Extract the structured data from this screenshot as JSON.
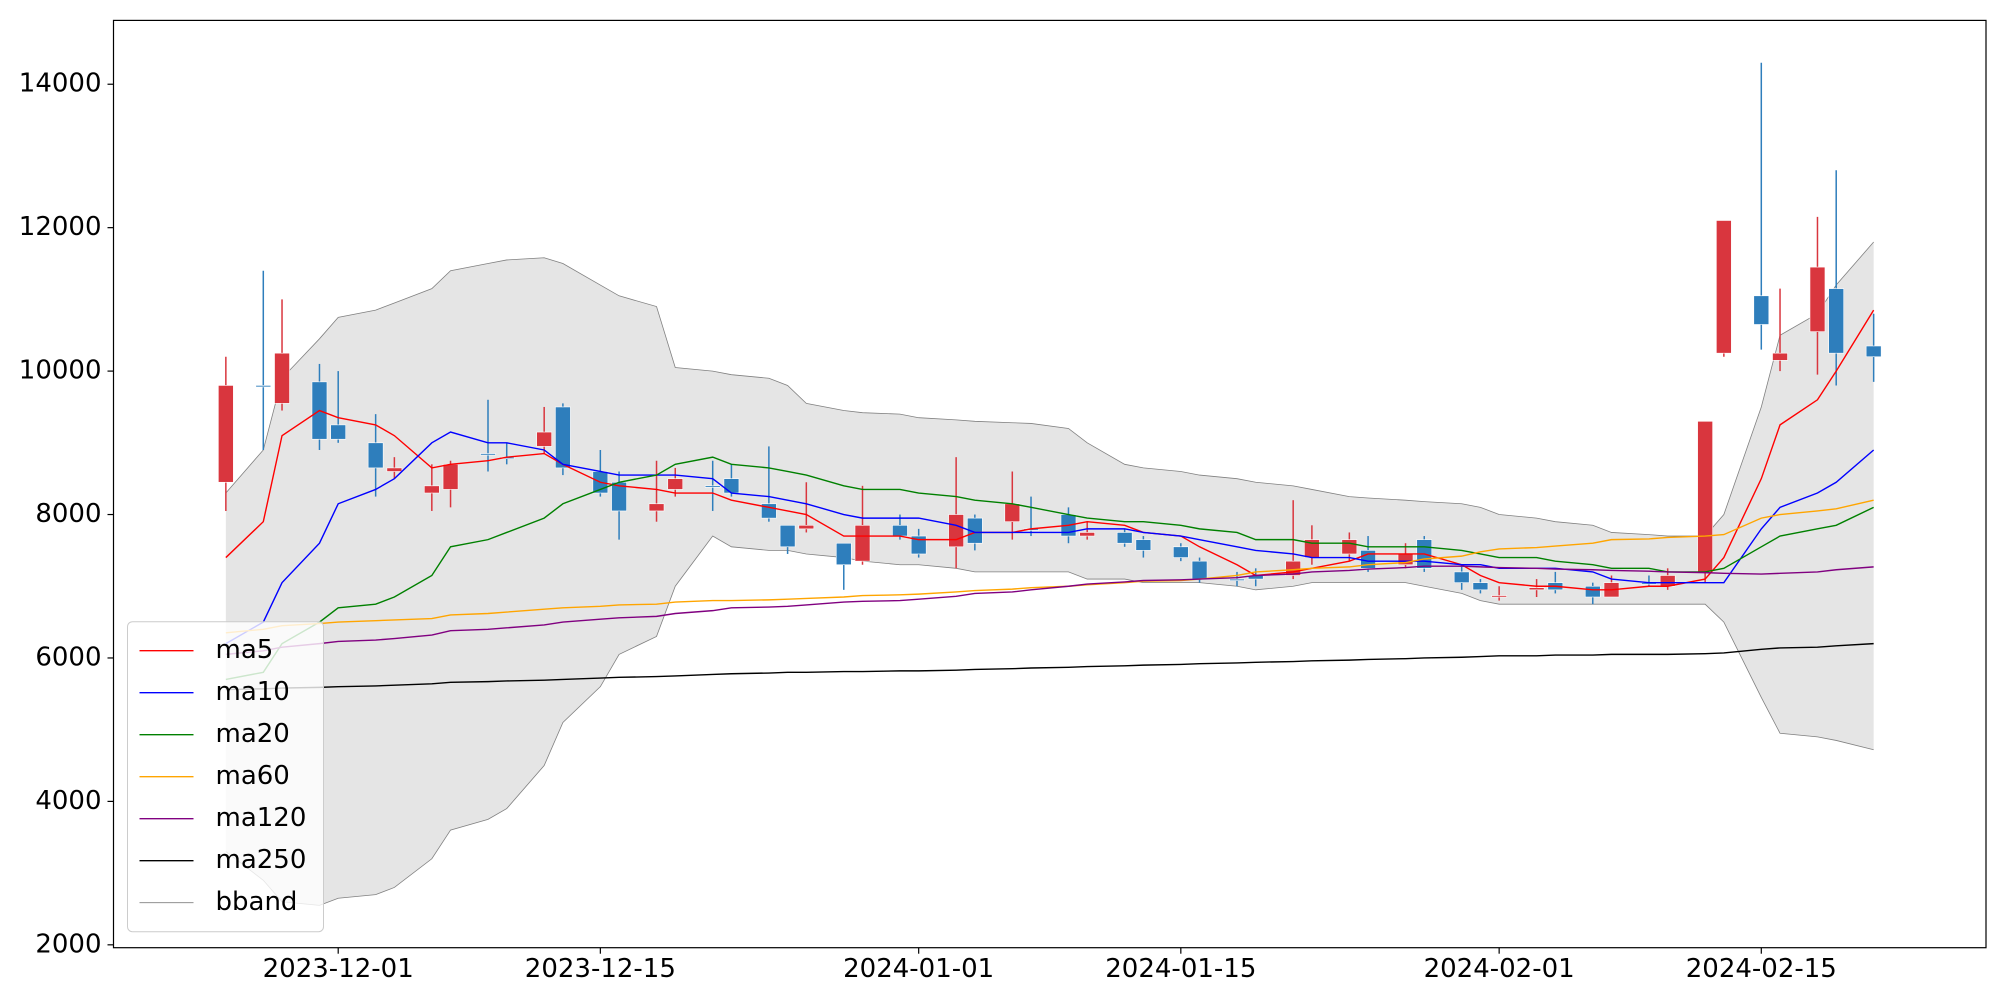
{
  "chart_data": {
    "type": "candlestick",
    "x": [
      "2023-11-25",
      "2023-11-27",
      "2023-11-28",
      "2023-11-30",
      "2023-12-01",
      "2023-12-03",
      "2023-12-04",
      "2023-12-06",
      "2023-12-07",
      "2023-12-09",
      "2023-12-10",
      "2023-12-12",
      "2023-12-13",
      "2023-12-15",
      "2023-12-16",
      "2023-12-18",
      "2023-12-19",
      "2023-12-21",
      "2023-12-22",
      "2023-12-24",
      "2023-12-25",
      "2023-12-26",
      "2023-12-28",
      "2023-12-29",
      "2023-12-31",
      "2024-01-01",
      "2024-01-03",
      "2024-01-04",
      "2024-01-06",
      "2024-01-07",
      "2024-01-09",
      "2024-01-10",
      "2024-01-12",
      "2024-01-13",
      "2024-01-15",
      "2024-01-16",
      "2024-01-18",
      "2024-01-19",
      "2024-01-21",
      "2024-01-22",
      "2024-01-24",
      "2024-01-25",
      "2024-01-27",
      "2024-01-28",
      "2024-01-30",
      "2024-01-31",
      "2024-02-01",
      "2024-02-03",
      "2024-02-04",
      "2024-02-06",
      "2024-02-07",
      "2024-02-09",
      "2024-02-10",
      "2024-02-12",
      "2024-02-13",
      "2024-02-15",
      "2024-02-16",
      "2024-02-18",
      "2024-02-19",
      "2024-02-21"
    ],
    "open": [
      8450,
      9800,
      9550,
      9850,
      9250,
      9000,
      8600,
      8300,
      8350,
      8850,
      8800,
      8950,
      9500,
      8600,
      8450,
      8050,
      8350,
      8400,
      8500,
      8150,
      7850,
      7800,
      7600,
      7350,
      7850,
      7700,
      7550,
      7950,
      7900,
      7800,
      8000,
      7700,
      7750,
      7650,
      7550,
      7350,
      7100,
      7150,
      7150,
      7400,
      7450,
      7500,
      7300,
      7650,
      7200,
      7050,
      6850,
      6950,
      7050,
      7000,
      6850,
      7050,
      7000,
      7200,
      10250,
      11050,
      10150,
      10550,
      11150,
      10350
    ],
    "high": [
      10200,
      11400,
      11000,
      10100,
      10000,
      9400,
      8800,
      8700,
      8750,
      9600,
      9000,
      9500,
      9550,
      8900,
      8600,
      8750,
      8650,
      8750,
      8700,
      8950,
      7850,
      8450,
      7600,
      8400,
      8000,
      7800,
      8800,
      8000,
      8600,
      8250,
      8100,
      7900,
      7800,
      7700,
      7600,
      7400,
      7200,
      7250,
      8200,
      7850,
      7750,
      7700,
      7600,
      7700,
      7300,
      7100,
      7000,
      7100,
      7200,
      7050,
      7150,
      7150,
      7250,
      9300,
      12100,
      14300,
      11150,
      12150,
      12800,
      10800
    ],
    "low": [
      8050,
      8900,
      9450,
      8900,
      9000,
      8250,
      8500,
      8050,
      8100,
      8600,
      8700,
      8850,
      8550,
      8250,
      7650,
      7900,
      8250,
      8050,
      8250,
      7900,
      7450,
      7750,
      6950,
      7300,
      7650,
      7400,
      7250,
      7500,
      7650,
      7700,
      7600,
      7650,
      7550,
      7400,
      7350,
      7050,
      7000,
      7000,
      7100,
      7300,
      7350,
      7200,
      7250,
      7200,
      6950,
      6900,
      6800,
      6850,
      6900,
      6750,
      6850,
      7000,
      6950,
      7050,
      10200,
      10300,
      10000,
      9950,
      9800,
      9850
    ],
    "close": [
      9800,
      9790,
      10250,
      9050,
      9050,
      8650,
      8650,
      8400,
      8700,
      8840,
      8790,
      9150,
      8650,
      8300,
      8050,
      8150,
      8500,
      8390,
      8300,
      7950,
      7550,
      7850,
      7300,
      7850,
      7700,
      7450,
      8000,
      7600,
      8150,
      7790,
      7700,
      7750,
      7600,
      7500,
      7400,
      7100,
      7090,
      7100,
      7350,
      7650,
      7650,
      7250,
      7450,
      7250,
      7050,
      6950,
      6870,
      6980,
      6950,
      6850,
      7050,
      7040,
      7150,
      9300,
      12100,
      10650,
      10250,
      11450,
      10250,
      10200
    ],
    "up_color": "#d9363e",
    "down_color": "#2e7ebc",
    "series": [
      {
        "name": "ma5",
        "color": "#ff0000",
        "values": [
          7400,
          7900,
          9100,
          9450,
          9350,
          9250,
          9100,
          8650,
          8700,
          8750,
          8800,
          8850,
          8700,
          8450,
          8400,
          8350,
          8300,
          8300,
          8200,
          8100,
          8050,
          8000,
          7700,
          7700,
          7700,
          7650,
          7650,
          7750,
          7750,
          7800,
          7850,
          7900,
          7850,
          7750,
          7700,
          7550,
          7300,
          7150,
          7200,
          7250,
          7350,
          7450,
          7450,
          7450,
          7300,
          7150,
          7050,
          7000,
          7000,
          6950,
          6950,
          7000,
          7000,
          7100,
          7400,
          8500,
          9250,
          9600,
          10000,
          10850
        ]
      },
      {
        "name": "ma10",
        "color": "#0000ff",
        "values": [
          6200,
          6500,
          7050,
          7600,
          8150,
          8350,
          8500,
          9000,
          9150,
          9000,
          9000,
          8900,
          8700,
          8600,
          8550,
          8550,
          8550,
          8500,
          8300,
          8250,
          8200,
          8150,
          8000,
          7950,
          7950,
          7950,
          7850,
          7750,
          7750,
          7750,
          7750,
          7800,
          7800,
          7750,
          7700,
          7650,
          7550,
          7500,
          7450,
          7400,
          7400,
          7350,
          7350,
          7350,
          7300,
          7300,
          7250,
          7250,
          7250,
          7200,
          7100,
          7050,
          7050,
          7050,
          7050,
          7800,
          8100,
          8300,
          8450,
          8900
        ]
      },
      {
        "name": "ma20",
        "color": "#008000",
        "values": [
          5700,
          5800,
          6200,
          6500,
          6700,
          6750,
          6850,
          7150,
          7550,
          7650,
          7750,
          7950,
          8150,
          8350,
          8450,
          8550,
          8700,
          8800,
          8700,
          8650,
          8600,
          8550,
          8400,
          8350,
          8350,
          8300,
          8250,
          8200,
          8150,
          8100,
          8000,
          7950,
          7900,
          7900,
          7850,
          7800,
          7750,
          7650,
          7650,
          7600,
          7600,
          7550,
          7550,
          7550,
          7500,
          7450,
          7400,
          7400,
          7350,
          7300,
          7250,
          7250,
          7200,
          7200,
          7250,
          7550,
          7700,
          7800,
          7850,
          8100
        ]
      },
      {
        "name": "ma60",
        "color": "#ffa500",
        "values": [
          6350,
          6400,
          6450,
          6480,
          6500,
          6520,
          6530,
          6550,
          6600,
          6620,
          6640,
          6680,
          6700,
          6720,
          6740,
          6750,
          6780,
          6800,
          6800,
          6810,
          6820,
          6830,
          6850,
          6870,
          6880,
          6890,
          6920,
          6940,
          6960,
          6980,
          7000,
          7020,
          7050,
          7070,
          7080,
          7100,
          7150,
          7200,
          7230,
          7250,
          7270,
          7300,
          7330,
          7380,
          7420,
          7480,
          7520,
          7540,
          7560,
          7600,
          7650,
          7660,
          7680,
          7700,
          7720,
          7950,
          8000,
          8050,
          8080,
          8200
        ]
      },
      {
        "name": "ma120",
        "color": "#800080",
        "values": [
          6050,
          6100,
          6150,
          6200,
          6230,
          6250,
          6270,
          6320,
          6380,
          6400,
          6420,
          6460,
          6500,
          6540,
          6560,
          6580,
          6620,
          6660,
          6700,
          6710,
          6720,
          6740,
          6780,
          6790,
          6800,
          6820,
          6860,
          6900,
          6920,
          6950,
          7000,
          7030,
          7060,
          7080,
          7090,
          7100,
          7120,
          7150,
          7170,
          7200,
          7220,
          7240,
          7260,
          7280,
          7280,
          7270,
          7260,
          7250,
          7240,
          7230,
          7220,
          7210,
          7200,
          7190,
          7180,
          7170,
          7180,
          7200,
          7230,
          7270
        ]
      },
      {
        "name": "ma250",
        "color": "#000000",
        "values": [
          5560,
          5570,
          5580,
          5590,
          5600,
          5610,
          5620,
          5640,
          5660,
          5670,
          5680,
          5690,
          5700,
          5720,
          5730,
          5740,
          5750,
          5770,
          5780,
          5790,
          5800,
          5800,
          5810,
          5810,
          5820,
          5820,
          5830,
          5840,
          5850,
          5860,
          5870,
          5880,
          5890,
          5900,
          5910,
          5920,
          5930,
          5940,
          5950,
          5960,
          5970,
          5980,
          5990,
          6000,
          6010,
          6020,
          6030,
          6030,
          6040,
          6040,
          6050,
          6050,
          6050,
          6060,
          6070,
          6120,
          6140,
          6150,
          6170,
          6200
        ]
      }
    ],
    "bband": {
      "name": "bband",
      "color": "#808080",
      "fill": "#e5e5e5",
      "upper": [
        8300,
        8900,
        9900,
        10450,
        10750,
        10850,
        10950,
        11150,
        11400,
        11500,
        11550,
        11580,
        11500,
        11200,
        11050,
        10900,
        10050,
        10000,
        9950,
        9900,
        9800,
        9550,
        9450,
        9420,
        9400,
        9350,
        9320,
        9300,
        9280,
        9270,
        9200,
        9000,
        8700,
        8650,
        8600,
        8550,
        8500,
        8450,
        8400,
        8350,
        8250,
        8230,
        8200,
        8180,
        8150,
        8100,
        8000,
        7950,
        7900,
        7850,
        7750,
        7720,
        7700,
        7700,
        8000,
        9500,
        10500,
        10800,
        11200,
        11800
      ],
      "lower": [
        3300,
        2900,
        2600,
        2550,
        2650,
        2700,
        2800,
        3200,
        3600,
        3750,
        3900,
        4500,
        5100,
        5600,
        6050,
        6300,
        7000,
        7700,
        7550,
        7500,
        7500,
        7450,
        7400,
        7350,
        7300,
        7300,
        7250,
        7200,
        7200,
        7200,
        7200,
        7100,
        7100,
        7050,
        7050,
        7050,
        7000,
        6950,
        7000,
        7050,
        7050,
        7050,
        7050,
        7000,
        6900,
        6800,
        6750,
        6750,
        6750,
        6750,
        6750,
        6750,
        6750,
        6750,
        6500,
        5450,
        4950,
        4900,
        4850,
        4720
      ]
    },
    "xlim": [
      "2023-11-19",
      "2024-02-27"
    ],
    "ylim": [
      1960,
      14890
    ],
    "yticks": [
      2000,
      4000,
      6000,
      8000,
      10000,
      12000,
      14000
    ],
    "xticks": [
      "2023-12-01",
      "2023-12-15",
      "2024-01-01",
      "2024-01-15",
      "2024-02-01",
      "2024-02-15"
    ],
    "legend": "lower left"
  }
}
